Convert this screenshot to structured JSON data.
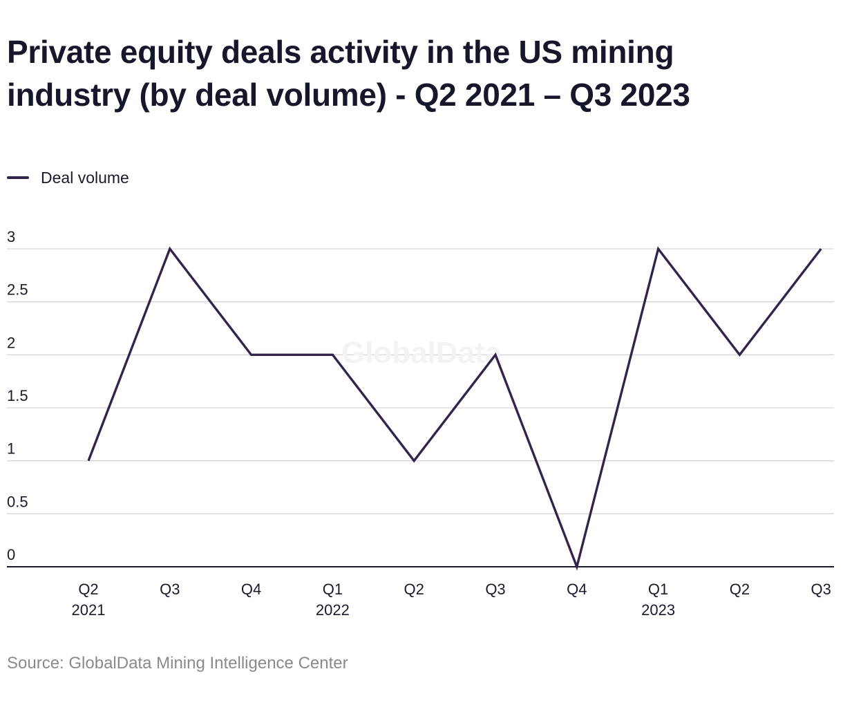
{
  "chart_data": {
    "type": "line",
    "title": "Private equity deals activity in the US mining industry (by deal volume) - Q2 2021 – Q3 2023",
    "title_lines": [
      "Private equity deals activity in the US mining",
      "industry (by deal volume) - Q2 2021 – Q3 2023"
    ],
    "categories": [
      "Q2 2021",
      "Q3 2021",
      "Q4 2021",
      "Q1 2022",
      "Q2 2022",
      "Q3 2022",
      "Q4 2022",
      "Q1 2023",
      "Q2 2023",
      "Q3 2023"
    ],
    "x_tick_labels": [
      [
        "Q2",
        "2021"
      ],
      [
        "Q3"
      ],
      [
        "Q4"
      ],
      [
        "Q1",
        "2022"
      ],
      [
        "Q2"
      ],
      [
        "Q3"
      ],
      [
        "Q4"
      ],
      [
        "Q1",
        "2023"
      ],
      [
        "Q2"
      ],
      [
        "Q3"
      ]
    ],
    "series": [
      {
        "name": "Deal volume",
        "color": "#33244d",
        "values": [
          1,
          3,
          2,
          2,
          1,
          2,
          0,
          3,
          2,
          3
        ]
      }
    ],
    "ylim": [
      0,
      3
    ],
    "y_ticks": [
      0,
      0.5,
      1,
      1.5,
      2,
      2.5,
      3
    ],
    "y_tick_labels": [
      "0",
      "0.5",
      "1",
      "1.5",
      "2",
      "2.5",
      "3"
    ],
    "xlabel": "",
    "ylabel": "",
    "grid": true,
    "legend_position": "top-left",
    "watermark": "GlobalData",
    "source": "Source: GlobalData Mining Intelligence Center"
  }
}
